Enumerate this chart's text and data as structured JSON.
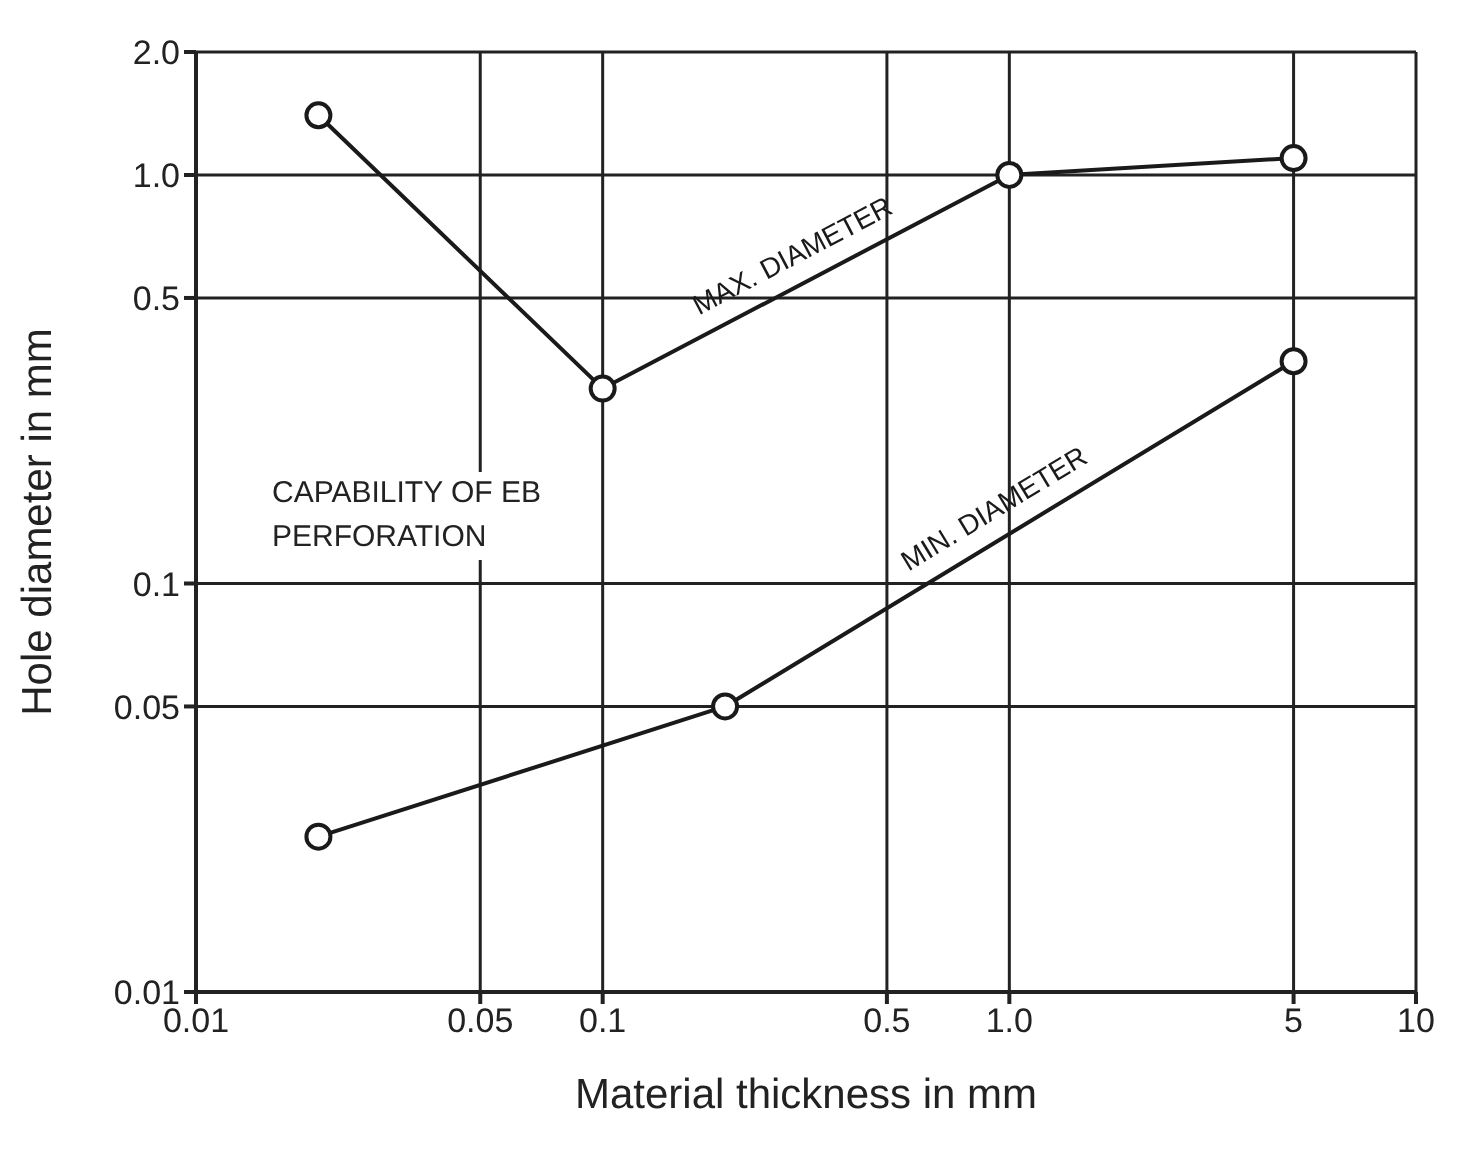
{
  "chart_data": {
    "type": "line",
    "xlabel": "Material thickness in mm",
    "ylabel": "Hole diameter in mm",
    "annotations": [
      "CAPABILITY OF EB PERFORATION"
    ],
    "series": [
      {
        "name": "MAX. DIAMETER",
        "color": "#1a1a1a",
        "x": [
          0.02,
          0.1,
          1.0,
          5
        ],
        "values": [
          1.4,
          0.3,
          1.0,
          1.1
        ]
      },
      {
        "name": "MIN. DIAMETER",
        "color": "#1a1a1a",
        "x": [
          0.02,
          0.2,
          5
        ],
        "values": [
          0.024,
          0.05,
          0.35
        ]
      }
    ],
    "xlim": [
      0.01,
      10
    ],
    "ylim": [
      0.01,
      2
    ],
    "xticks": [
      0.01,
      0.05,
      0.1,
      0.5,
      {
        "value": 1,
        "label": "1.0"
      },
      5,
      10
    ],
    "yticks": [
      0.01,
      0.05,
      0.1,
      0.5,
      {
        "value": 1,
        "label": "1.0"
      },
      {
        "value": 2,
        "label": "2.0"
      }
    ],
    "log": "xy",
    "grid": true,
    "legend": false,
    "marker": "circle",
    "line_style": "solid"
  }
}
